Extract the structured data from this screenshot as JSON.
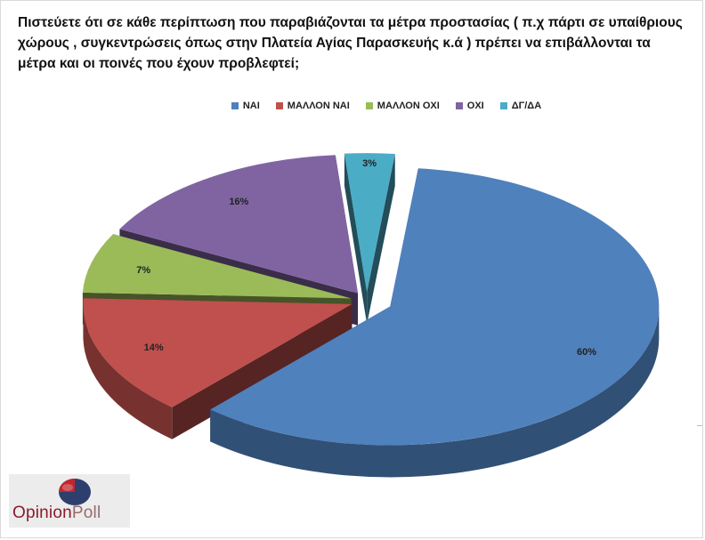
{
  "question": "Πιστεύετε ότι σε κάθε περίπτωση που παραβιάζονται τα μέτρα προστασίας ( π.χ πάρτι σε υπαίθριους χώρους , συγκεντρώσεις όπως στην Πλατεία Αγίας Παρασκευής κ.ά ) πρέπει να επιβάλλονται τα μέτρα και οι ποινές που έχουν προβλεφτεί;",
  "colors": {
    "nai": "#4f81bd",
    "mallon_nai": "#c0504d",
    "mallon_oxi": "#9bbb59",
    "oxi": "#8064a2",
    "dgda": "#4bacc6"
  },
  "chart_data": {
    "type": "pie",
    "style": "3d-exploded",
    "legend_position": "top",
    "categories": [
      "ΝΑΙ",
      "ΜΑΛΛΟΝ ΝΑΙ",
      "ΜΑΛΛΟΝ ΟΧΙ",
      "ΟΧΙ",
      "ΔΓ/ΔΑ"
    ],
    "values": [
      60,
      14,
      7,
      16,
      3
    ],
    "data_labels": [
      "60%",
      "14%",
      "7%",
      "16%",
      "3%"
    ]
  },
  "logo": {
    "icon": "opinionpoll-logo-icon",
    "text_main": "Opinion",
    "text_secondary": "Poll"
  }
}
